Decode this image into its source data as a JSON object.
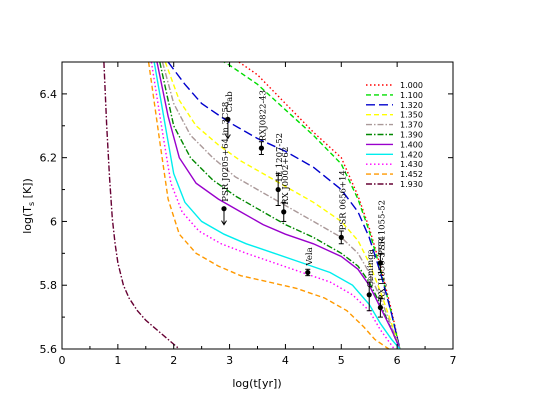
{
  "chart_data": {
    "type": "line",
    "xlabel": "log(t[yr])",
    "ylabel": "log(T_s [K])",
    "ylabel_main": "log(T",
    "ylabel_sub": "s",
    "ylabel_tail": " [K])",
    "xlim": [
      0,
      7
    ],
    "ylim": [
      5.6,
      6.5
    ],
    "xticks": [
      0,
      1,
      2,
      3,
      4,
      5,
      6,
      7
    ],
    "yticks": [
      5.6,
      5.8,
      6.0,
      6.2,
      6.4
    ],
    "xtick_labels": [
      "0",
      "1",
      "2",
      "3",
      "4",
      "5",
      "6",
      "7"
    ],
    "ytick_labels": [
      "5.6",
      "5.8",
      "6",
      "6.2",
      "6.4"
    ],
    "grid": false,
    "legend_position": "top-right",
    "series": [
      {
        "name": "1.000",
        "color": "#ff0000",
        "dash": "dot",
        "x": [
          2.0,
          2.5,
          3.0,
          3.5,
          4.0,
          4.5,
          5.0,
          5.3,
          5.5,
          5.7,
          5.9,
          6.05
        ],
        "y": [
          6.62,
          6.56,
          6.52,
          6.46,
          6.37,
          6.28,
          6.2,
          6.08,
          5.98,
          5.86,
          5.72,
          5.6
        ]
      },
      {
        "name": "1.100",
        "color": "#00dd00",
        "dash": "dash",
        "x": [
          2.0,
          2.5,
          3.0,
          3.5,
          4.0,
          4.5,
          5.0,
          5.3,
          5.5,
          5.7,
          5.9,
          6.05
        ],
        "y": [
          6.6,
          6.54,
          6.49,
          6.43,
          6.35,
          6.27,
          6.18,
          6.07,
          5.97,
          5.85,
          5.71,
          5.6
        ]
      },
      {
        "name": "1.320",
        "color": "#0000cc",
        "dash": "longdash",
        "x": [
          1.9,
          2.2,
          2.5,
          3.0,
          3.5,
          4.0,
          4.5,
          5.0,
          5.3,
          5.5,
          5.7,
          5.9,
          6.05
        ],
        "y": [
          6.5,
          6.43,
          6.37,
          6.31,
          6.26,
          6.22,
          6.17,
          6.1,
          6.03,
          5.95,
          5.84,
          5.71,
          5.6
        ]
      },
      {
        "name": "1.350",
        "color": "#ffff00",
        "dash": "dash",
        "x": [
          1.85,
          2.1,
          2.4,
          2.8,
          3.2,
          3.6,
          4.0,
          4.5,
          5.0,
          5.3,
          5.5,
          5.7,
          5.9,
          6.05
        ],
        "y": [
          6.5,
          6.38,
          6.3,
          6.24,
          6.19,
          6.15,
          6.11,
          6.06,
          6.0,
          5.94,
          5.87,
          5.78,
          5.68,
          5.6
        ]
      },
      {
        "name": "1.370",
        "color": "#aa9999",
        "dash": "dashdot",
        "x": [
          1.8,
          2.0,
          2.3,
          2.7,
          3.1,
          3.5,
          4.0,
          4.5,
          5.0,
          5.3,
          5.5,
          5.7,
          5.9,
          6.05
        ],
        "y": [
          6.5,
          6.37,
          6.27,
          6.2,
          6.14,
          6.1,
          6.05,
          6.0,
          5.95,
          5.9,
          5.84,
          5.76,
          5.67,
          5.6
        ]
      },
      {
        "name": "1.390",
        "color": "#008800",
        "dash": "dashdot",
        "x": [
          1.75,
          2.0,
          2.3,
          2.7,
          3.1,
          3.5,
          4.0,
          4.5,
          5.0,
          5.3,
          5.5,
          5.7,
          5.9,
          6.05
        ],
        "y": [
          6.5,
          6.3,
          6.2,
          6.13,
          6.08,
          6.04,
          5.99,
          5.95,
          5.9,
          5.86,
          5.81,
          5.74,
          5.66,
          5.6
        ]
      },
      {
        "name": "1.400",
        "color": "#9900cc",
        "dash": "solid",
        "x": [
          1.7,
          1.9,
          2.1,
          2.4,
          2.8,
          3.2,
          3.6,
          4.0,
          4.5,
          5.0,
          5.3,
          5.5,
          5.7,
          5.9,
          6.05
        ],
        "y": [
          6.5,
          6.33,
          6.2,
          6.12,
          6.07,
          6.03,
          5.99,
          5.96,
          5.93,
          5.89,
          5.85,
          5.8,
          5.73,
          5.66,
          5.6
        ]
      },
      {
        "name": "1.420",
        "color": "#00eeee",
        "dash": "solid",
        "x": [
          1.65,
          1.85,
          2.0,
          2.2,
          2.5,
          2.9,
          3.3,
          3.8,
          4.3,
          4.8,
          5.2,
          5.5,
          5.7,
          5.9,
          6.05
        ],
        "y": [
          6.5,
          6.3,
          6.15,
          6.06,
          6.0,
          5.96,
          5.93,
          5.9,
          5.87,
          5.84,
          5.8,
          5.74,
          5.68,
          5.63,
          5.6
        ]
      },
      {
        "name": "1.430",
        "color": "#ff00ff",
        "dash": "dot",
        "x": [
          1.6,
          1.8,
          1.95,
          2.15,
          2.45,
          2.85,
          3.3,
          3.8,
          4.3,
          4.8,
          5.2,
          5.5,
          5.7,
          5.95
        ],
        "y": [
          6.5,
          6.28,
          6.12,
          6.03,
          5.97,
          5.93,
          5.9,
          5.87,
          5.84,
          5.81,
          5.77,
          5.72,
          5.66,
          5.6
        ]
      },
      {
        "name": "1.452",
        "color": "#ff9900",
        "dash": "dash",
        "x": [
          1.55,
          1.75,
          1.9,
          2.1,
          2.4,
          2.8,
          3.2,
          3.7,
          4.2,
          4.7,
          5.1,
          5.4,
          5.6,
          5.85
        ],
        "y": [
          6.5,
          6.25,
          6.07,
          5.96,
          5.9,
          5.86,
          5.83,
          5.81,
          5.79,
          5.76,
          5.72,
          5.67,
          5.63,
          5.6
        ]
      },
      {
        "name": "1.930",
        "color": "#660033",
        "dash": "dashdot",
        "x": [
          0.75,
          0.8,
          0.85,
          0.9,
          0.95,
          1.0,
          1.1,
          1.2,
          1.35,
          1.5,
          1.7,
          1.9,
          2.1
        ],
        "y": [
          6.5,
          6.3,
          6.14,
          6.01,
          5.93,
          5.87,
          5.8,
          5.76,
          5.72,
          5.69,
          5.66,
          5.63,
          5.6
        ]
      }
    ],
    "observations": [
      {
        "name": "Crab",
        "x": 2.97,
        "y": 6.32,
        "yerr_low": 0.0,
        "yerr_high": 0.0,
        "upper_limit": true,
        "limit_to": 6.26
      },
      {
        "name": "RXJ0822-43",
        "x": 3.57,
        "y": 6.23,
        "yerr_low": 0.02,
        "yerr_high": 0.02,
        "upper_limit": false
      },
      {
        "name": "1E 1207-52",
        "x": 3.87,
        "y": 6.1,
        "yerr_low": 0.05,
        "yerr_high": 0.05,
        "upper_limit": false
      },
      {
        "name": "RX J0002+62",
        "x": 3.97,
        "y": 6.03,
        "yerr_low": 0.03,
        "yerr_high": 0.03,
        "upper_limit": false
      },
      {
        "name": "PSR J0205+64 in 3C58",
        "x": 2.9,
        "y": 6.04,
        "yerr_low": 0.0,
        "yerr_high": 0.0,
        "upper_limit": true,
        "limit_to": 5.99
      },
      {
        "name": "Vela",
        "x": 4.4,
        "y": 5.84,
        "yerr_low": 0.01,
        "yerr_high": 0.01,
        "upper_limit": false
      },
      {
        "name": "PSR 0656+14",
        "x": 5.0,
        "y": 5.95,
        "yerr_low": 0.02,
        "yerr_high": 0.02,
        "upper_limit": false
      },
      {
        "name": "Geminga",
        "x": 5.5,
        "y": 5.77,
        "yerr_low": 0.05,
        "yerr_high": 0.04,
        "upper_limit": false
      },
      {
        "name": "PSR 1055-52",
        "x": 5.7,
        "y": 5.87,
        "yerr_low": 0.03,
        "yerr_high": 0.03,
        "upper_limit": false
      },
      {
        "name": "RX J1856-3754",
        "x": 5.7,
        "y": 5.73,
        "yerr_low": 0.03,
        "yerr_high": 0.03,
        "upper_limit": false
      }
    ]
  }
}
